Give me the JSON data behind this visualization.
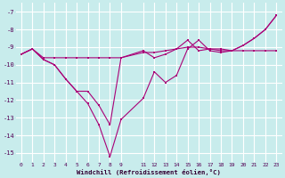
{
  "xlabel": "Windchill (Refroidissement éolien,°C)",
  "bg_color": "#c8ecec",
  "grid_color": "#ffffff",
  "line_color": "#aa0077",
  "xlim": [
    -0.5,
    23.5
  ],
  "ylim": [
    -15.5,
    -6.5
  ],
  "yticks": [
    -15,
    -14,
    -13,
    -12,
    -11,
    -10,
    -9,
    -8,
    -7
  ],
  "xticks": [
    0,
    1,
    2,
    3,
    4,
    5,
    6,
    7,
    8,
    9,
    11,
    12,
    13,
    14,
    15,
    16,
    17,
    18,
    19,
    20,
    21,
    22,
    23
  ],
  "series1_x": [
    0,
    1,
    2,
    3,
    4,
    5,
    6,
    7,
    8,
    9,
    11,
    12,
    13,
    14,
    15,
    16,
    17,
    18,
    19,
    20,
    21,
    22,
    23
  ],
  "series1_y": [
    -9.4,
    -9.1,
    -9.6,
    -9.6,
    -9.6,
    -9.6,
    -9.6,
    -9.6,
    -9.6,
    -9.6,
    -9.3,
    -9.3,
    -9.2,
    -9.1,
    -9.0,
    -9.0,
    -9.1,
    -9.1,
    -9.2,
    -9.2,
    -9.2,
    -9.2,
    -9.2
  ],
  "series2_x": [
    0,
    1,
    2,
    3,
    4,
    5,
    6,
    7,
    8,
    9,
    11,
    12,
    13,
    14,
    15,
    16,
    17,
    18,
    19,
    20,
    21,
    22,
    23
  ],
  "series2_y": [
    -9.4,
    -9.1,
    -9.7,
    -10.0,
    -10.8,
    -11.5,
    -12.2,
    -13.4,
    -15.2,
    -13.1,
    -11.9,
    -10.4,
    -11.0,
    -10.6,
    -9.1,
    -8.6,
    -9.2,
    -9.3,
    -9.2,
    -8.9,
    -8.5,
    -8.0,
    -7.2
  ],
  "series3_x": [
    0,
    1,
    2,
    3,
    4,
    5,
    6,
    7,
    8,
    9,
    11,
    12,
    13,
    14,
    15,
    16,
    17,
    18,
    19,
    20,
    21,
    22,
    23
  ],
  "series3_y": [
    -9.4,
    -9.1,
    -9.7,
    -10.0,
    -10.8,
    -11.5,
    -11.5,
    -12.3,
    -13.4,
    -9.6,
    -9.2,
    -9.6,
    -9.4,
    -9.1,
    -8.6,
    -9.2,
    -9.1,
    -9.2,
    -9.2,
    -8.9,
    -8.5,
    -8.0,
    -7.2
  ]
}
